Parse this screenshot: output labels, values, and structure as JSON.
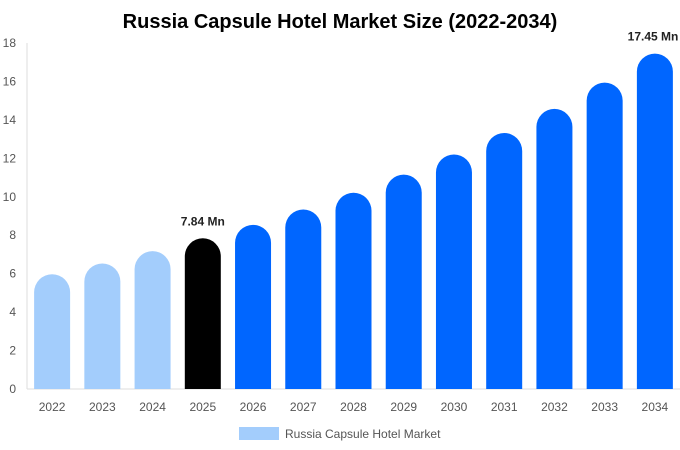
{
  "chart_data": {
    "type": "bar",
    "title": "Russia Capsule Hotel Market Size (2022-2034)",
    "xlabel": "",
    "ylabel": "",
    "ylim": [
      0,
      18
    ],
    "yticks": [
      0,
      2,
      4,
      6,
      8,
      10,
      12,
      14,
      16,
      18
    ],
    "grid": false,
    "legend_position": "bottom",
    "categories": [
      "2022",
      "2023",
      "2024",
      "2025",
      "2026",
      "2027",
      "2028",
      "2029",
      "2030",
      "2031",
      "2032",
      "2033",
      "2034"
    ],
    "series": [
      {
        "name": "Russia Capsule Hotel Market",
        "values": [
          5.97,
          6.53,
          7.17,
          7.84,
          8.54,
          9.34,
          10.21,
          11.15,
          12.2,
          13.32,
          14.57,
          15.94,
          17.45
        ]
      }
    ],
    "bar_colors": [
      "#a3cdfc",
      "#a3cdfc",
      "#a3cdfc",
      "#000000",
      "#0066ff",
      "#0066ff",
      "#0066ff",
      "#0066ff",
      "#0066ff",
      "#0066ff",
      "#0066ff",
      "#0066ff",
      "#0066ff"
    ],
    "legend_color": "#a3cdfc",
    "annotations": [
      {
        "category": "2025",
        "text": "7.84 Mn"
      },
      {
        "category": "2034",
        "text": "17.45 Mn"
      }
    ]
  }
}
